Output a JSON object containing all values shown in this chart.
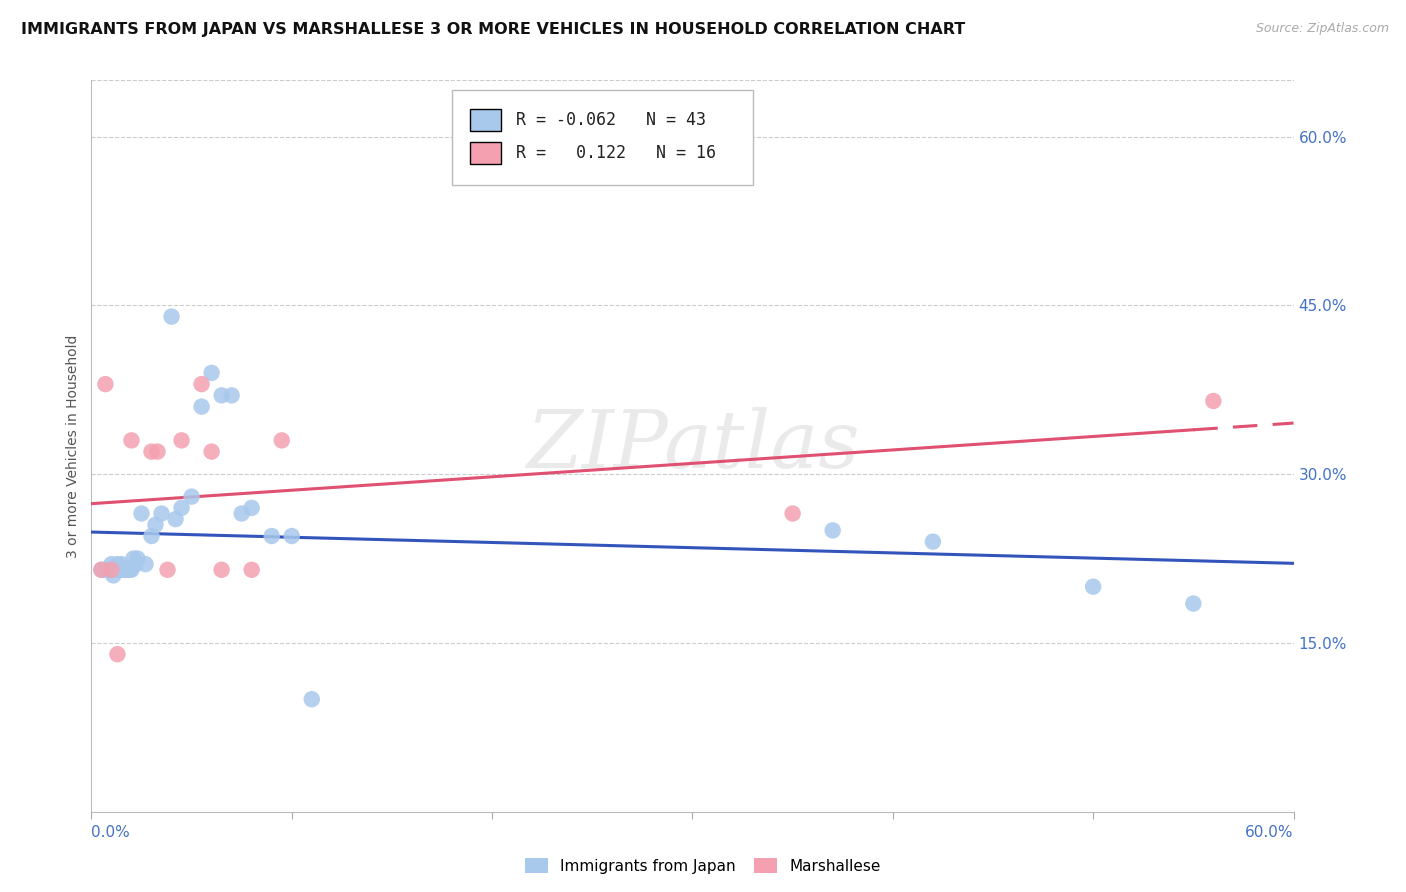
{
  "title": "IMMIGRANTS FROM JAPAN VS MARSHALLESE 3 OR MORE VEHICLES IN HOUSEHOLD CORRELATION CHART",
  "source": "Source: ZipAtlas.com",
  "ylabel": "3 or more Vehicles in Household",
  "R1": -0.062,
  "N1": 43,
  "R2": 0.122,
  "N2": 16,
  "color_blue": "#A8C8EC",
  "color_pink": "#F4A0B0",
  "color_blue_line": "#3355BB",
  "color_pink_line": "#E05070",
  "color_axis_labels": "#4472C4",
  "color_grid": "#CCCCCC",
  "xmin": 0.0,
  "xmax": 0.6,
  "ymin": 0.0,
  "ymax": 0.65,
  "legend1_label": "Immigrants from Japan",
  "legend2_label": "Marshallese",
  "japan_x": [
    0.005,
    0.007,
    0.008,
    0.009,
    0.01,
    0.01,
    0.011,
    0.012,
    0.013,
    0.013,
    0.014,
    0.015,
    0.015,
    0.016,
    0.017,
    0.018,
    0.019,
    0.02,
    0.021,
    0.022,
    0.023,
    0.025,
    0.027,
    0.03,
    0.032,
    0.035,
    0.04,
    0.042,
    0.045,
    0.05,
    0.055,
    0.06,
    0.065,
    0.07,
    0.075,
    0.08,
    0.09,
    0.1,
    0.11,
    0.37,
    0.42,
    0.5,
    0.55
  ],
  "japan_y": [
    0.215,
    0.215,
    0.215,
    0.215,
    0.22,
    0.215,
    0.21,
    0.215,
    0.22,
    0.215,
    0.215,
    0.22,
    0.215,
    0.215,
    0.215,
    0.215,
    0.215,
    0.215,
    0.225,
    0.22,
    0.225,
    0.265,
    0.22,
    0.245,
    0.255,
    0.265,
    0.44,
    0.26,
    0.27,
    0.28,
    0.36,
    0.39,
    0.37,
    0.37,
    0.265,
    0.27,
    0.245,
    0.245,
    0.1,
    0.25,
    0.24,
    0.2,
    0.185
  ],
  "marsh_x": [
    0.005,
    0.007,
    0.01,
    0.013,
    0.02,
    0.03,
    0.033,
    0.038,
    0.045,
    0.055,
    0.06,
    0.065,
    0.08,
    0.095,
    0.35,
    0.56
  ],
  "marsh_y": [
    0.215,
    0.38,
    0.215,
    0.14,
    0.33,
    0.32,
    0.32,
    0.215,
    0.33,
    0.38,
    0.32,
    0.215,
    0.215,
    0.33,
    0.265,
    0.365
  ]
}
